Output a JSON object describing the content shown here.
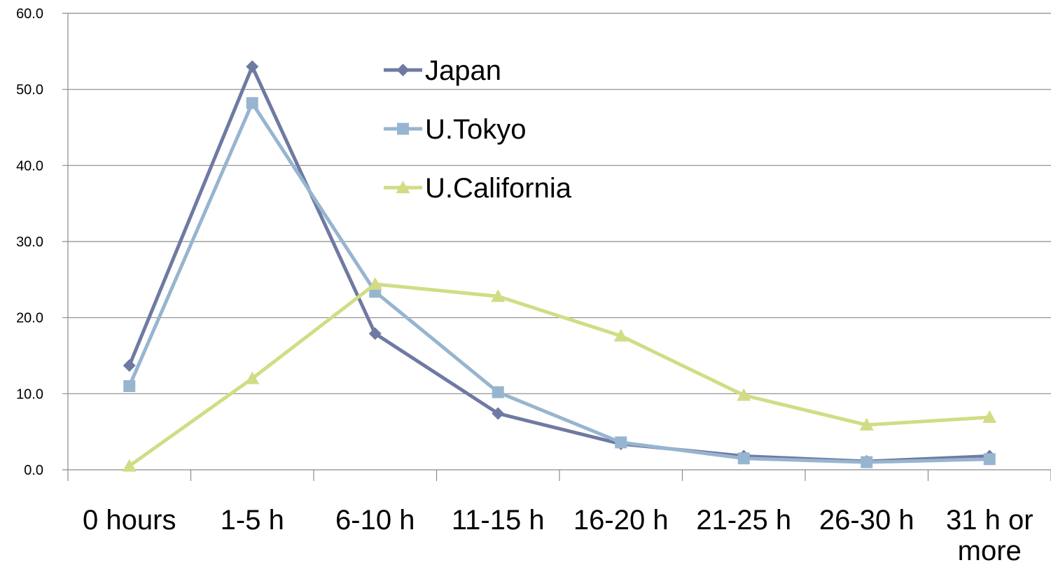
{
  "chart_data": {
    "type": "line",
    "title": "",
    "xlabel": "",
    "ylabel": "",
    "categories": [
      "0 hours",
      "1-5 h",
      "6-10 h",
      "11-15 h",
      "16-20 h",
      "21-25 h",
      "26-30 h",
      "31 h or more"
    ],
    "y_tick_labels": [
      "0.0",
      "10.0",
      "20.0",
      "30.0",
      "40.0",
      "50.0",
      "60.0"
    ],
    "ylim": [
      0,
      60
    ],
    "grid": "horizontal",
    "legend_position": "top-center",
    "series": [
      {
        "name": "Japan",
        "color": "#6f7aa2",
        "marker": "diamond",
        "values": [
          13.7,
          53.0,
          17.9,
          7.4,
          3.4,
          1.8,
          1.1,
          1.8
        ]
      },
      {
        "name": "U.Tokyo",
        "color": "#97b5cf",
        "marker": "square",
        "values": [
          11.0,
          48.2,
          23.4,
          10.2,
          3.6,
          1.5,
          1.0,
          1.4
        ]
      },
      {
        "name": "U.California",
        "color": "#d2dc84",
        "marker": "triangle",
        "values": [
          0.5,
          12.0,
          24.4,
          22.8,
          17.6,
          9.8,
          5.9,
          6.9
        ]
      }
    ]
  }
}
